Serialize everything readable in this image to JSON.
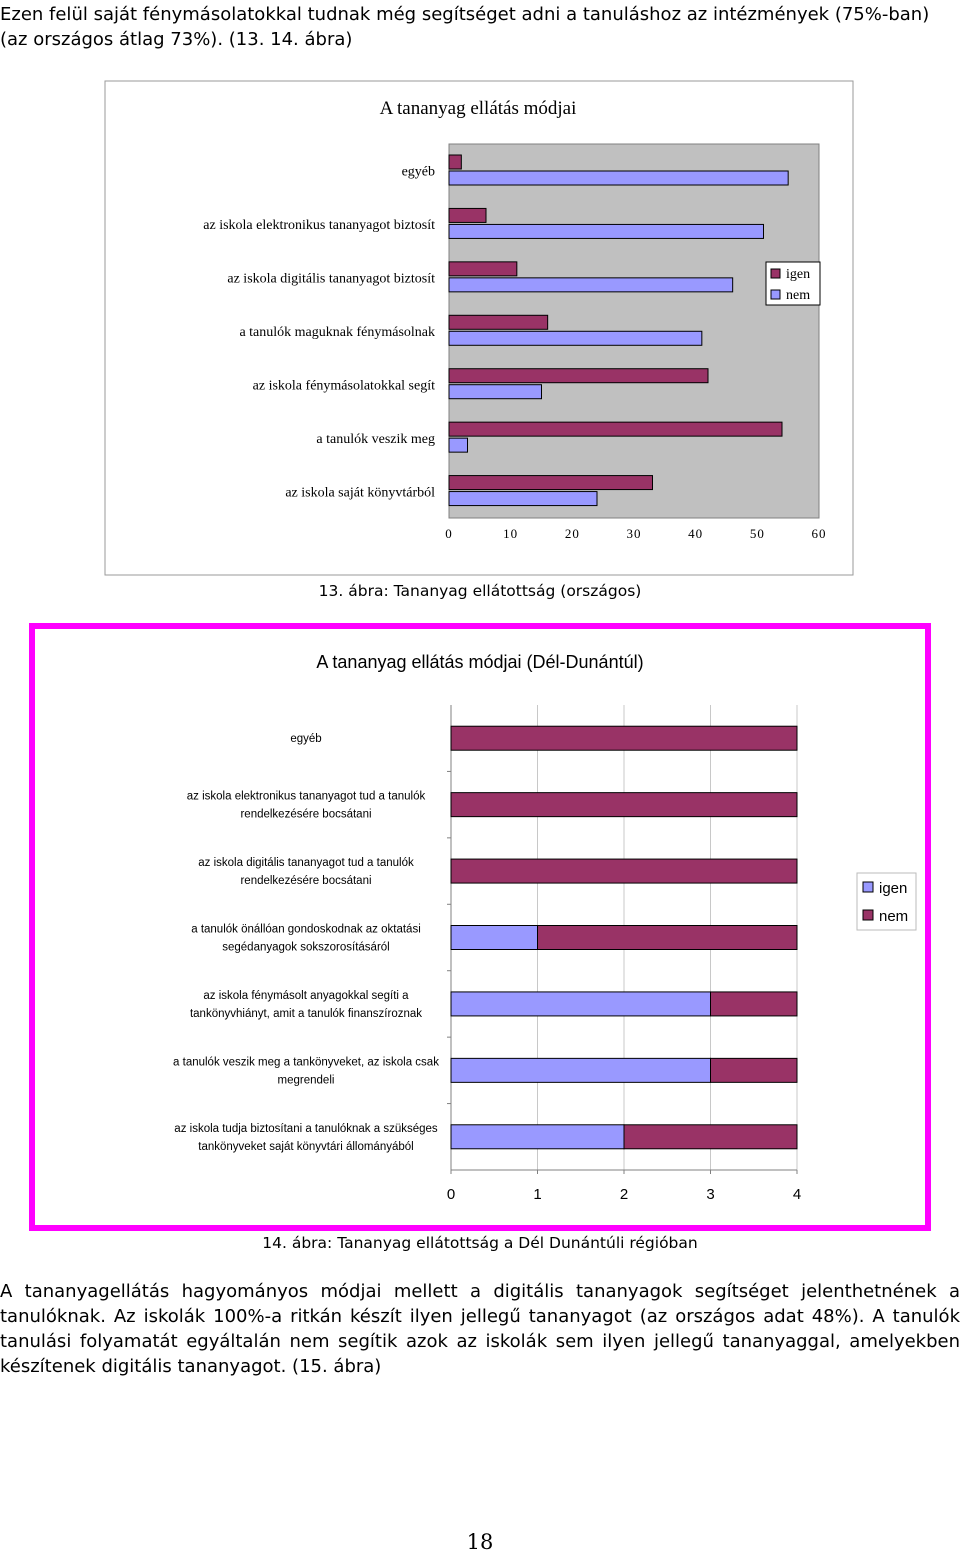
{
  "intro_text": "Ezen felül saját fénymásolatokkal tudnak még segítséget adni a tanuláshoz az intézmények (75%-ban) (az országos átlag 73%). (13. 14. ábra)",
  "body_text": "A tananyagellátás hagyományos módjai mellett a digitális tananyagok segítséget jelenthetnének a tanulóknak. Az iskolák 100%-a ritkán készít ilyen jellegű tananyagot (az országos adat 48%). A tanulók tanulási folyamatát egyáltalán nem segítik azok az iskolák sem ilyen jellegű tananyaggal, amelyekben készítenek digitális tananyagot. (15. ábra)",
  "page_number": "18",
  "chart_data": [
    {
      "type": "bar",
      "orientation": "horizontal",
      "title": "A tananyag ellátás módjai",
      "caption": "13. ábra: Tananyag ellátottság (országos)",
      "categories": [
        "egyéb",
        "az iskola elektronikus tananyagot biztosít",
        "az iskola digitális tananyagot biztosít",
        "a tanulók maguknak fénymásolnak",
        "az iskola fénymásolatokkal segít",
        "a tanulók veszik meg",
        "az iskola saját könyvtárból"
      ],
      "series": [
        {
          "name": "igen",
          "values": [
            2,
            6,
            11,
            16,
            42,
            54,
            33
          ],
          "color": "#993366"
        },
        {
          "name": "nem",
          "values": [
            55,
            51,
            46,
            41,
            15,
            3,
            24
          ],
          "color": "#9999ff"
        }
      ],
      "xlim": [
        0,
        60
      ],
      "xticks": [
        "0",
        "10",
        "20",
        "30",
        "40",
        "50",
        "60"
      ],
      "legend": "right",
      "grid": false,
      "plot_background": "#c0c0c0"
    },
    {
      "type": "bar",
      "orientation": "horizontal",
      "stacked": true,
      "title": "A tananyag ellátás módjai (Dél-Dunántúl)",
      "caption": "14. ábra: Tananyag ellátottság a Dél Dunántúli régióban",
      "categories": [
        [
          "egyéb"
        ],
        [
          "az iskola elektronikus tananyagot tud a tanulók",
          "rendelkezésére bocsátani"
        ],
        [
          "az iskola digitális tananyagot tud a tanulók",
          "rendelkezésére bocsátani"
        ],
        [
          "a tanulók önállóan gondoskodnak az oktatási",
          "segédanyagok sokszorosításáról"
        ],
        [
          "az iskola fénymásolt anyagokkal segíti a",
          "tankönyvhiányt, amit a tanulók finanszíroznak"
        ],
        [
          "a tanulók veszik meg a tankönyveket, az iskola csak",
          "megrendeli"
        ],
        [
          "az iskola tudja biztosítani a tanulóknak a szükséges",
          "tankönyveket saját könyvtári állományából"
        ]
      ],
      "series": [
        {
          "name": "igen",
          "values": [
            0,
            0,
            0,
            1,
            3,
            3,
            2
          ],
          "color": "#9999ff"
        },
        {
          "name": "nem",
          "values": [
            4,
            4,
            4,
            3,
            1,
            1,
            2
          ],
          "color": "#993366"
        }
      ],
      "xlim": [
        0,
        4
      ],
      "xticks": [
        "0",
        "1",
        "2",
        "3",
        "4"
      ],
      "legend": "right",
      "grid": true,
      "border_color": "#ff00ff"
    }
  ]
}
